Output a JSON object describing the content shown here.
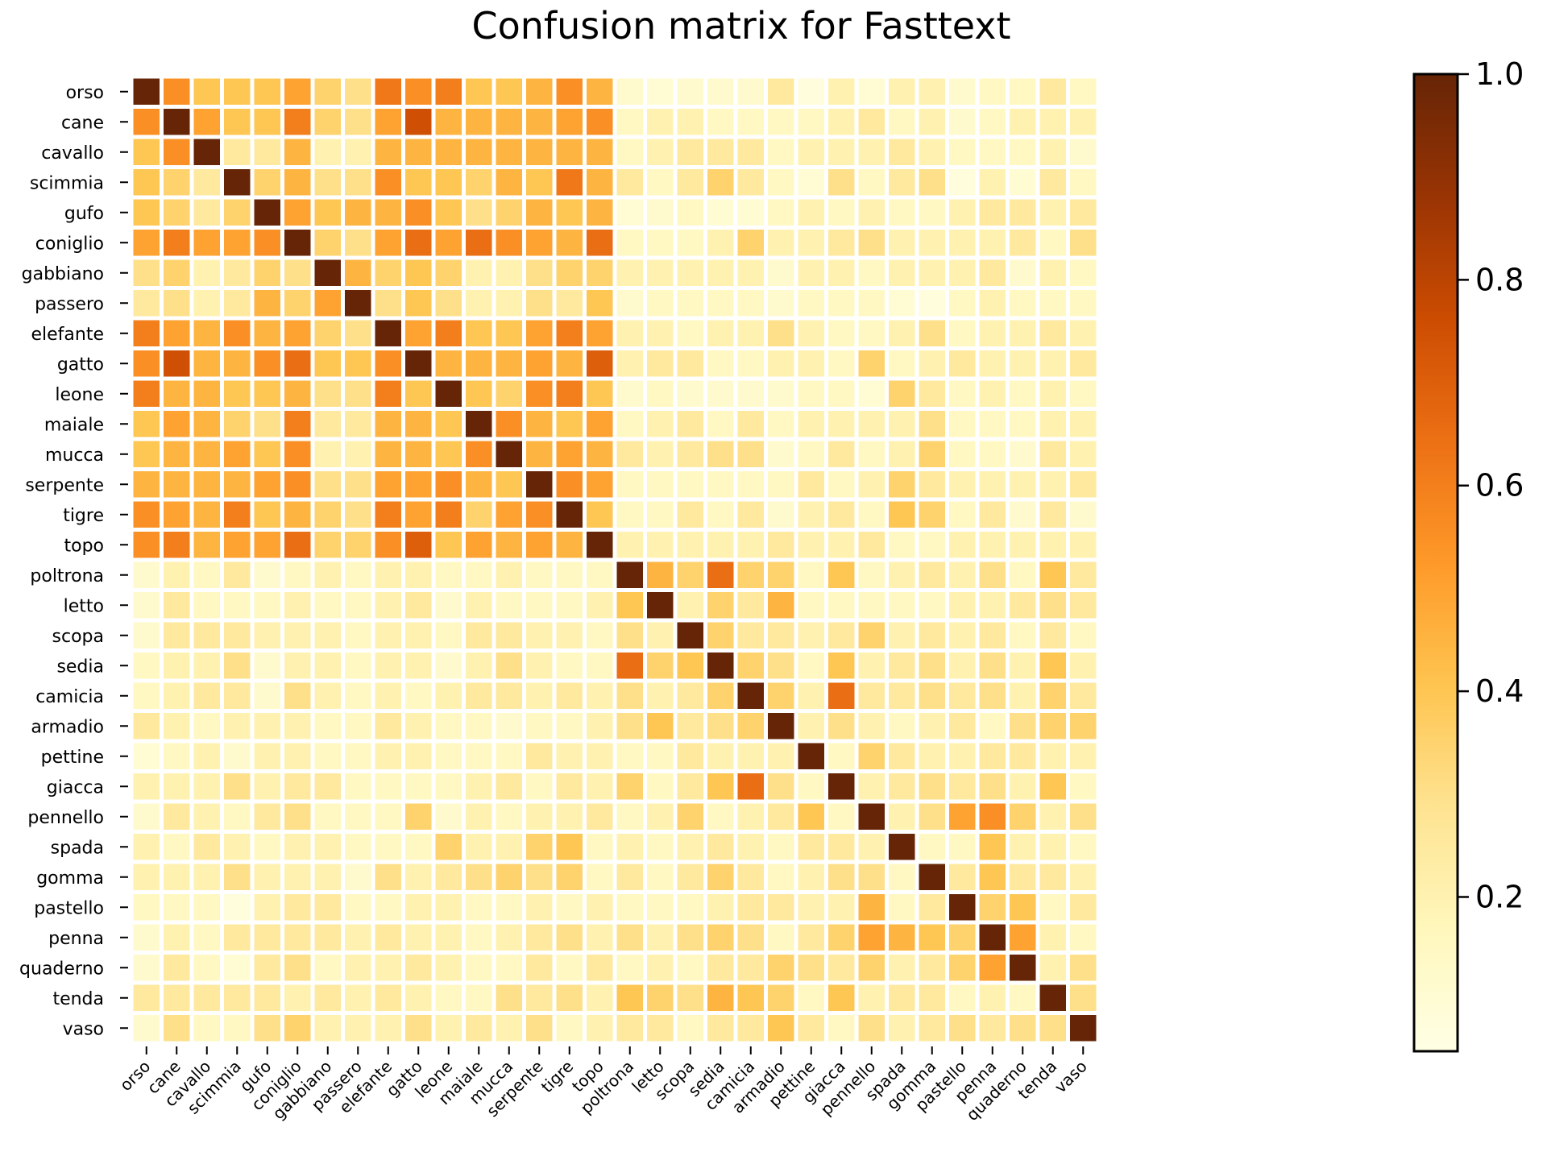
{
  "chart_data": {
    "type": "heatmap",
    "title": "Confusion matrix for Fasttext",
    "xlabel": "",
    "ylabel": "",
    "labels": [
      "orso",
      "cane",
      "cavallo",
      "scimmia",
      "gufo",
      "coniglio",
      "gabbiano",
      "passero",
      "elefante",
      "gatto",
      "leone",
      "maiale",
      "mucca",
      "serpente",
      "tigre",
      "topo",
      "poltrona",
      "letto",
      "scopa",
      "sedia",
      "camicia",
      "armadio",
      "pettine",
      "giacca",
      "pennello",
      "spada",
      "gomma",
      "pastello",
      "penna",
      "quaderno",
      "tenda",
      "vaso"
    ],
    "colorbar": {
      "min": 0.05,
      "max": 1.0,
      "ticks": [
        0.2,
        0.4,
        0.6,
        0.8,
        1.0
      ],
      "tick_labels": [
        "0.2",
        "0.4",
        "0.6",
        "0.8",
        "1.0"
      ]
    },
    "colormap": [
      "#ffffe5",
      "#fff7bc",
      "#fee391",
      "#fec44f",
      "#fe9929",
      "#ec7014",
      "#cc4c02",
      "#993404",
      "#662506"
    ],
    "grid_color": "#ffffff",
    "values": [
      [
        1.0,
        0.55,
        0.4,
        0.4,
        0.4,
        0.5,
        0.35,
        0.3,
        0.62,
        0.55,
        0.6,
        0.4,
        0.4,
        0.45,
        0.55,
        0.45,
        0.12,
        0.1,
        0.12,
        0.12,
        0.12,
        0.25,
        0.08,
        0.2,
        0.1,
        0.2,
        0.2,
        0.12,
        0.15,
        0.15,
        0.25,
        0.15
      ],
      [
        0.55,
        1.0,
        0.5,
        0.4,
        0.4,
        0.6,
        0.35,
        0.3,
        0.5,
        0.75,
        0.45,
        0.45,
        0.45,
        0.45,
        0.5,
        0.55,
        0.15,
        0.2,
        0.2,
        0.15,
        0.15,
        0.15,
        0.15,
        0.2,
        0.25,
        0.15,
        0.2,
        0.12,
        0.15,
        0.2,
        0.2,
        0.2
      ],
      [
        0.4,
        0.55,
        1.0,
        0.25,
        0.25,
        0.45,
        0.2,
        0.2,
        0.45,
        0.45,
        0.45,
        0.45,
        0.45,
        0.45,
        0.45,
        0.45,
        0.15,
        0.2,
        0.25,
        0.25,
        0.25,
        0.15,
        0.2,
        0.2,
        0.2,
        0.25,
        0.2,
        0.15,
        0.15,
        0.15,
        0.2,
        0.12
      ],
      [
        0.4,
        0.35,
        0.25,
        1.0,
        0.35,
        0.45,
        0.3,
        0.3,
        0.55,
        0.4,
        0.4,
        0.35,
        0.45,
        0.4,
        0.62,
        0.45,
        0.25,
        0.15,
        0.25,
        0.35,
        0.25,
        0.15,
        0.1,
        0.3,
        0.15,
        0.25,
        0.3,
        0.08,
        0.2,
        0.1,
        0.25,
        0.15
      ],
      [
        0.4,
        0.35,
        0.25,
        0.35,
        1.0,
        0.5,
        0.4,
        0.45,
        0.45,
        0.55,
        0.4,
        0.3,
        0.35,
        0.45,
        0.4,
        0.45,
        0.1,
        0.12,
        0.15,
        0.1,
        0.1,
        0.15,
        0.2,
        0.15,
        0.2,
        0.15,
        0.15,
        0.2,
        0.25,
        0.25,
        0.2,
        0.25
      ],
      [
        0.5,
        0.6,
        0.5,
        0.5,
        0.55,
        1.0,
        0.35,
        0.3,
        0.5,
        0.65,
        0.5,
        0.65,
        0.55,
        0.5,
        0.45,
        0.65,
        0.15,
        0.15,
        0.15,
        0.2,
        0.35,
        0.2,
        0.2,
        0.25,
        0.3,
        0.2,
        0.2,
        0.2,
        0.2,
        0.25,
        0.15,
        0.3
      ],
      [
        0.3,
        0.35,
        0.2,
        0.25,
        0.35,
        0.3,
        1.0,
        0.45,
        0.35,
        0.4,
        0.35,
        0.2,
        0.2,
        0.3,
        0.35,
        0.35,
        0.2,
        0.2,
        0.2,
        0.2,
        0.2,
        0.12,
        0.2,
        0.2,
        0.15,
        0.2,
        0.2,
        0.2,
        0.25,
        0.12,
        0.2,
        0.15
      ],
      [
        0.25,
        0.3,
        0.2,
        0.25,
        0.45,
        0.35,
        0.5,
        1.0,
        0.3,
        0.4,
        0.3,
        0.2,
        0.2,
        0.3,
        0.25,
        0.4,
        0.12,
        0.15,
        0.15,
        0.15,
        0.15,
        0.12,
        0.15,
        0.15,
        0.15,
        0.1,
        0.08,
        0.15,
        0.2,
        0.15,
        0.15,
        0.15
      ],
      [
        0.6,
        0.5,
        0.45,
        0.55,
        0.45,
        0.5,
        0.35,
        0.3,
        1.0,
        0.5,
        0.6,
        0.4,
        0.4,
        0.5,
        0.6,
        0.5,
        0.2,
        0.2,
        0.15,
        0.2,
        0.2,
        0.3,
        0.2,
        0.15,
        0.15,
        0.2,
        0.3,
        0.15,
        0.2,
        0.2,
        0.25,
        0.2
      ],
      [
        0.55,
        0.75,
        0.45,
        0.45,
        0.55,
        0.65,
        0.4,
        0.4,
        0.55,
        1.0,
        0.45,
        0.45,
        0.45,
        0.5,
        0.45,
        0.7,
        0.2,
        0.25,
        0.25,
        0.15,
        0.15,
        0.2,
        0.2,
        0.15,
        0.35,
        0.15,
        0.2,
        0.25,
        0.2,
        0.2,
        0.2,
        0.25
      ],
      [
        0.6,
        0.45,
        0.45,
        0.4,
        0.4,
        0.45,
        0.3,
        0.3,
        0.6,
        0.4,
        1.0,
        0.4,
        0.35,
        0.55,
        0.6,
        0.4,
        0.12,
        0.15,
        0.12,
        0.12,
        0.12,
        0.12,
        0.15,
        0.15,
        0.1,
        0.35,
        0.25,
        0.15,
        0.2,
        0.15,
        0.2,
        0.15
      ],
      [
        0.4,
        0.5,
        0.45,
        0.35,
        0.3,
        0.6,
        0.25,
        0.25,
        0.45,
        0.45,
        0.4,
        1.0,
        0.55,
        0.45,
        0.4,
        0.5,
        0.15,
        0.2,
        0.25,
        0.15,
        0.25,
        0.15,
        0.2,
        0.2,
        0.2,
        0.2,
        0.3,
        0.15,
        0.15,
        0.15,
        0.2,
        0.2
      ],
      [
        0.4,
        0.45,
        0.45,
        0.5,
        0.4,
        0.55,
        0.2,
        0.2,
        0.45,
        0.45,
        0.4,
        0.55,
        1.0,
        0.45,
        0.5,
        0.45,
        0.25,
        0.2,
        0.25,
        0.3,
        0.3,
        0.12,
        0.15,
        0.25,
        0.15,
        0.2,
        0.35,
        0.15,
        0.15,
        0.12,
        0.25,
        0.2
      ],
      [
        0.45,
        0.45,
        0.45,
        0.45,
        0.5,
        0.55,
        0.3,
        0.3,
        0.5,
        0.5,
        0.55,
        0.45,
        0.4,
        1.0,
        0.55,
        0.5,
        0.15,
        0.15,
        0.15,
        0.15,
        0.15,
        0.15,
        0.25,
        0.15,
        0.2,
        0.35,
        0.25,
        0.2,
        0.2,
        0.2,
        0.2,
        0.25
      ],
      [
        0.55,
        0.5,
        0.45,
        0.6,
        0.4,
        0.45,
        0.35,
        0.3,
        0.6,
        0.5,
        0.6,
        0.35,
        0.5,
        0.55,
        1.0,
        0.4,
        0.15,
        0.15,
        0.25,
        0.15,
        0.25,
        0.12,
        0.2,
        0.25,
        0.15,
        0.4,
        0.35,
        0.15,
        0.25,
        0.12,
        0.25,
        0.12
      ],
      [
        0.55,
        0.6,
        0.45,
        0.5,
        0.5,
        0.65,
        0.35,
        0.35,
        0.55,
        0.7,
        0.4,
        0.5,
        0.45,
        0.5,
        0.45,
        1.0,
        0.2,
        0.2,
        0.2,
        0.2,
        0.2,
        0.25,
        0.2,
        0.2,
        0.25,
        0.15,
        0.15,
        0.2,
        0.2,
        0.2,
        0.2,
        0.2
      ],
      [
        0.12,
        0.2,
        0.15,
        0.25,
        0.12,
        0.15,
        0.2,
        0.15,
        0.2,
        0.2,
        0.15,
        0.15,
        0.2,
        0.15,
        0.15,
        0.15,
        1.0,
        0.45,
        0.35,
        0.65,
        0.35,
        0.35,
        0.15,
        0.4,
        0.15,
        0.2,
        0.25,
        0.2,
        0.3,
        0.15,
        0.4,
        0.25
      ],
      [
        0.12,
        0.25,
        0.15,
        0.15,
        0.15,
        0.2,
        0.15,
        0.15,
        0.2,
        0.25,
        0.12,
        0.2,
        0.15,
        0.15,
        0.15,
        0.2,
        0.4,
        1.0,
        0.2,
        0.35,
        0.25,
        0.45,
        0.15,
        0.15,
        0.15,
        0.15,
        0.15,
        0.2,
        0.2,
        0.25,
        0.3,
        0.25
      ],
      [
        0.12,
        0.25,
        0.25,
        0.25,
        0.2,
        0.2,
        0.2,
        0.15,
        0.2,
        0.2,
        0.15,
        0.25,
        0.25,
        0.2,
        0.2,
        0.15,
        0.3,
        0.2,
        1.0,
        0.35,
        0.25,
        0.25,
        0.2,
        0.25,
        0.35,
        0.2,
        0.25,
        0.2,
        0.25,
        0.15,
        0.25,
        0.15
      ],
      [
        0.15,
        0.2,
        0.2,
        0.3,
        0.12,
        0.2,
        0.2,
        0.15,
        0.2,
        0.2,
        0.12,
        0.2,
        0.3,
        0.2,
        0.15,
        0.15,
        0.65,
        0.35,
        0.4,
        1.0,
        0.35,
        0.3,
        0.15,
        0.4,
        0.2,
        0.25,
        0.3,
        0.2,
        0.3,
        0.2,
        0.4,
        0.2
      ],
      [
        0.15,
        0.2,
        0.25,
        0.25,
        0.12,
        0.3,
        0.2,
        0.15,
        0.2,
        0.15,
        0.2,
        0.25,
        0.25,
        0.2,
        0.25,
        0.2,
        0.3,
        0.2,
        0.25,
        0.35,
        1.0,
        0.35,
        0.2,
        0.65,
        0.25,
        0.25,
        0.3,
        0.25,
        0.3,
        0.2,
        0.35,
        0.25
      ],
      [
        0.25,
        0.2,
        0.15,
        0.2,
        0.2,
        0.2,
        0.15,
        0.15,
        0.25,
        0.2,
        0.15,
        0.15,
        0.12,
        0.15,
        0.15,
        0.2,
        0.3,
        0.4,
        0.25,
        0.3,
        0.35,
        1.0,
        0.2,
        0.3,
        0.2,
        0.15,
        0.2,
        0.25,
        0.15,
        0.3,
        0.35,
        0.35
      ],
      [
        0.1,
        0.15,
        0.2,
        0.12,
        0.2,
        0.2,
        0.15,
        0.15,
        0.2,
        0.2,
        0.15,
        0.15,
        0.15,
        0.25,
        0.2,
        0.2,
        0.15,
        0.15,
        0.25,
        0.2,
        0.2,
        0.2,
        1.0,
        0.15,
        0.35,
        0.25,
        0.2,
        0.2,
        0.25,
        0.25,
        0.2,
        0.2
      ],
      [
        0.2,
        0.2,
        0.2,
        0.3,
        0.2,
        0.25,
        0.25,
        0.15,
        0.15,
        0.15,
        0.15,
        0.2,
        0.25,
        0.15,
        0.25,
        0.2,
        0.35,
        0.15,
        0.25,
        0.4,
        0.65,
        0.3,
        0.15,
        1.0,
        0.2,
        0.25,
        0.3,
        0.25,
        0.3,
        0.2,
        0.4,
        0.15
      ],
      [
        0.12,
        0.25,
        0.2,
        0.15,
        0.25,
        0.3,
        0.15,
        0.15,
        0.15,
        0.35,
        0.12,
        0.2,
        0.15,
        0.2,
        0.2,
        0.25,
        0.15,
        0.2,
        0.35,
        0.15,
        0.2,
        0.25,
        0.4,
        0.15,
        1.0,
        0.2,
        0.3,
        0.5,
        0.55,
        0.35,
        0.2,
        0.3
      ],
      [
        0.2,
        0.15,
        0.25,
        0.2,
        0.15,
        0.2,
        0.2,
        0.15,
        0.15,
        0.15,
        0.35,
        0.2,
        0.2,
        0.35,
        0.4,
        0.15,
        0.2,
        0.15,
        0.2,
        0.25,
        0.2,
        0.15,
        0.25,
        0.25,
        0.2,
        1.0,
        0.15,
        0.15,
        0.4,
        0.2,
        0.2,
        0.15
      ],
      [
        0.2,
        0.2,
        0.2,
        0.3,
        0.2,
        0.2,
        0.2,
        0.12,
        0.3,
        0.2,
        0.25,
        0.3,
        0.35,
        0.3,
        0.35,
        0.15,
        0.25,
        0.15,
        0.25,
        0.35,
        0.25,
        0.15,
        0.2,
        0.3,
        0.3,
        0.15,
        1.0,
        0.25,
        0.4,
        0.25,
        0.25,
        0.2
      ],
      [
        0.15,
        0.15,
        0.15,
        0.08,
        0.2,
        0.25,
        0.25,
        0.15,
        0.15,
        0.2,
        0.2,
        0.15,
        0.15,
        0.2,
        0.15,
        0.2,
        0.15,
        0.15,
        0.15,
        0.2,
        0.25,
        0.25,
        0.2,
        0.2,
        0.45,
        0.15,
        0.25,
        1.0,
        0.35,
        0.4,
        0.15,
        0.25
      ],
      [
        0.12,
        0.2,
        0.15,
        0.25,
        0.25,
        0.25,
        0.25,
        0.2,
        0.25,
        0.2,
        0.2,
        0.15,
        0.2,
        0.25,
        0.3,
        0.2,
        0.3,
        0.2,
        0.3,
        0.35,
        0.3,
        0.15,
        0.25,
        0.35,
        0.5,
        0.45,
        0.4,
        0.35,
        1.0,
        0.5,
        0.2,
        0.15
      ],
      [
        0.12,
        0.25,
        0.15,
        0.1,
        0.25,
        0.3,
        0.15,
        0.2,
        0.2,
        0.25,
        0.2,
        0.15,
        0.15,
        0.25,
        0.15,
        0.25,
        0.15,
        0.2,
        0.15,
        0.25,
        0.25,
        0.35,
        0.3,
        0.25,
        0.35,
        0.2,
        0.25,
        0.35,
        0.5,
        1.0,
        0.2,
        0.3
      ],
      [
        0.25,
        0.25,
        0.25,
        0.25,
        0.25,
        0.2,
        0.25,
        0.2,
        0.25,
        0.2,
        0.15,
        0.15,
        0.3,
        0.25,
        0.3,
        0.2,
        0.4,
        0.35,
        0.3,
        0.45,
        0.4,
        0.35,
        0.15,
        0.4,
        0.2,
        0.25,
        0.25,
        0.15,
        0.2,
        0.15,
        1.0,
        0.3
      ],
      [
        0.12,
        0.3,
        0.15,
        0.15,
        0.3,
        0.35,
        0.2,
        0.2,
        0.2,
        0.3,
        0.2,
        0.25,
        0.2,
        0.3,
        0.15,
        0.2,
        0.25,
        0.25,
        0.15,
        0.25,
        0.25,
        0.4,
        0.25,
        0.15,
        0.3,
        0.2,
        0.25,
        0.3,
        0.25,
        0.3,
        0.3,
        1.0
      ]
    ]
  }
}
